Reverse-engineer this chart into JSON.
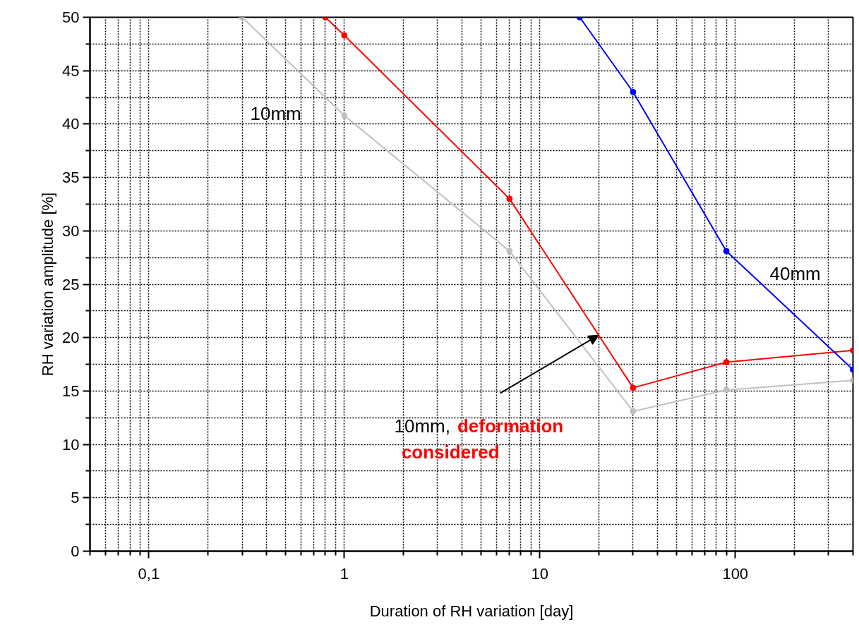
{
  "chart_data": {
    "type": "line",
    "xlabel": "Duration of RH variation [day]",
    "ylabel": "RH variation amplitude [%]",
    "log": "x",
    "xlim": [
      0.05,
      400
    ],
    "ylim": [
      0,
      50
    ],
    "xticks": [
      {
        "value": 0.1,
        "label": "0,1"
      },
      1,
      10,
      100
    ],
    "yticks": [
      0,
      5,
      10,
      15,
      20,
      25,
      30,
      35,
      40,
      45,
      50
    ],
    "grid": true,
    "marker": "circle",
    "line_style": "solid",
    "series": [
      {
        "name": "10mm",
        "color": "#c0c0c0",
        "x": [
          0.3,
          1,
          7,
          30,
          90,
          400
        ],
        "values": [
          50,
          40.8,
          28.1,
          13.1,
          15.1,
          16.0
        ]
      },
      {
        "name": "10mm, deformation considered",
        "color": "#ff0000",
        "x": [
          0.8,
          1,
          7,
          30,
          90,
          400
        ],
        "values": [
          50,
          48.3,
          33.0,
          15.3,
          17.7,
          18.8
        ]
      },
      {
        "name": "40mm",
        "color": "#0000ff",
        "x": [
          16,
          30,
          90,
          400
        ],
        "values": [
          50,
          43.0,
          28.1,
          17.0
        ]
      }
    ]
  }
}
